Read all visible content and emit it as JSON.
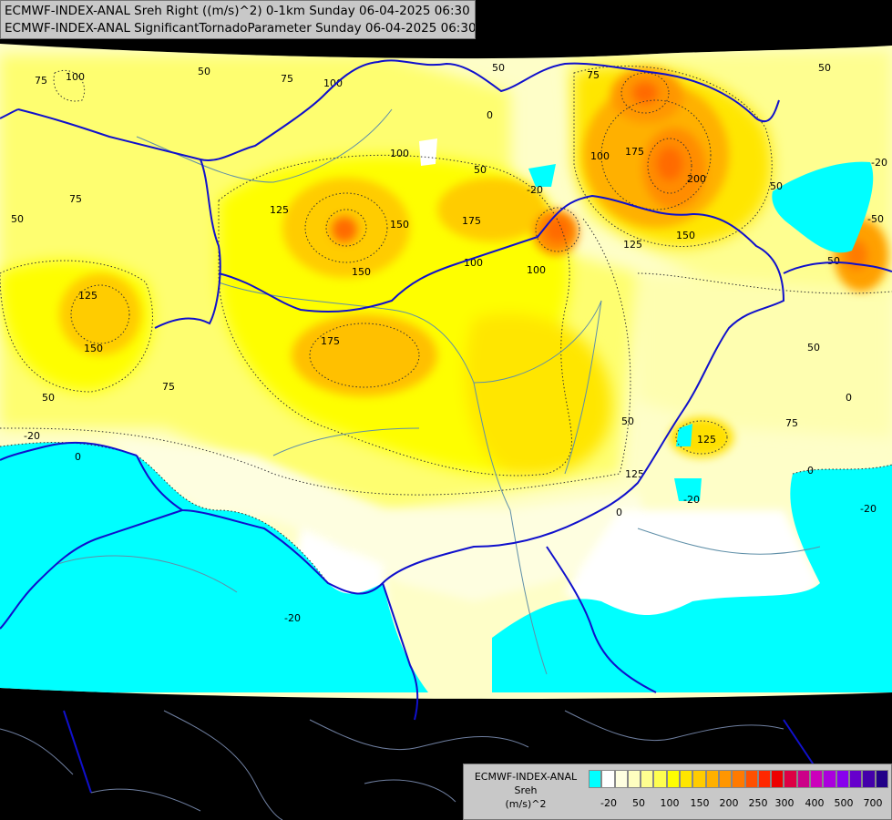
{
  "header": {
    "line1": "ECMWF-INDEX-ANAL Sreh Right ((m/s)^2) 0-1km Sunday 06-04-2025 06:30",
    "line2": "ECMWF-INDEX-ANAL SignificantTornadoParameter Sunday 06-04-2025 06:30"
  },
  "legend": {
    "model": "ECMWF-INDEX-ANAL",
    "param": "Sreh",
    "unit": "(m/s)^2",
    "colors": [
      "#00ffff",
      "#ffffff",
      "#fefee0",
      "#fefec0",
      "#fefe90",
      "#fefe50",
      "#fefe00",
      "#ffe600",
      "#ffcc00",
      "#ffb000",
      "#ff9600",
      "#ff7a00",
      "#ff5000",
      "#ff2800",
      "#ee0000",
      "#dd0044",
      "#cc0088",
      "#cc00bb",
      "#aa00dd",
      "#8800ee",
      "#6600cc",
      "#4400aa",
      "#220088"
    ],
    "ticks": [
      "-20",
      "50",
      "100",
      "150",
      "200",
      "250",
      "300",
      "400",
      "500",
      "700"
    ]
  },
  "map_labels": [
    "-20",
    "0",
    "50",
    "75",
    "100",
    "125",
    "150",
    "175",
    "200"
  ]
}
